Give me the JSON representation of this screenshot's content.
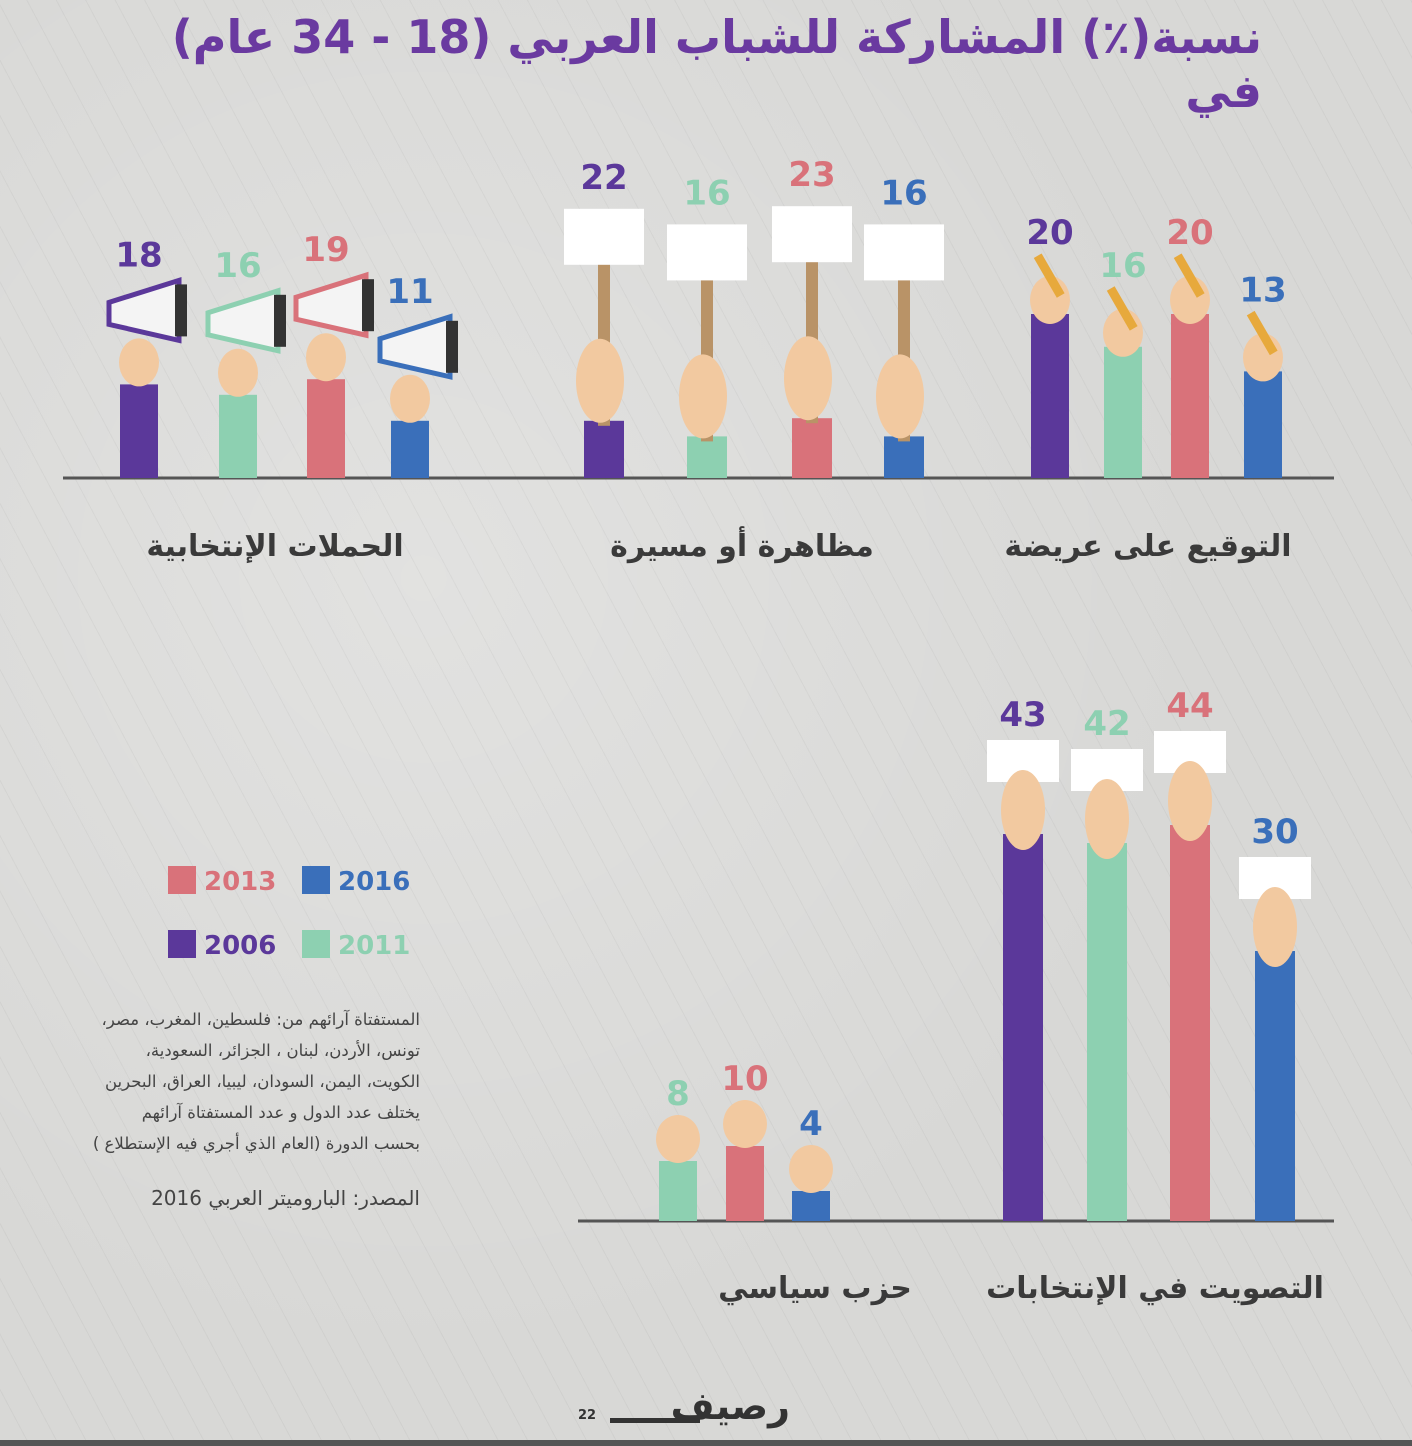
{
  "title": "نسبة(٪) المشاركة للشباب العربي (18 - 34 عام) في",
  "colors": {
    "2006": "#5b389a",
    "2011": "#8dd0b1",
    "2013": "#d9727a",
    "2016": "#3a6fba",
    "axis": "#555555",
    "skin": "#f2c9a0",
    "sign": "#ffffff",
    "pole": "#b99367"
  },
  "legend": [
    {
      "name": "2013",
      "color": "#d9727a"
    },
    {
      "name": "2016",
      "color": "#3a6fba"
    },
    {
      "name": "2006",
      "color": "#5b389a"
    },
    {
      "name": "2011",
      "color": "#8dd0b1"
    }
  ],
  "chart_data": {
    "type": "bar",
    "series_names": [
      "2006",
      "2011",
      "2013",
      "2016"
    ],
    "groups": [
      {
        "label": "التوقيع على عريضة",
        "icon": "pencil-hand-icon",
        "values": [
          20,
          16,
          20,
          13
        ]
      },
      {
        "label": "مظاهرة أو مسيرة",
        "icon": "protest-sign-icon",
        "values": [
          22,
          16,
          23,
          16
        ]
      },
      {
        "label": "الحملات الإنتخابية",
        "icon": "megaphone-icon",
        "values": [
          18,
          16,
          19,
          11
        ]
      },
      {
        "label": "التصويت في الإنتخابات",
        "icon": "ballot-hand-icon",
        "values": [
          43,
          42,
          44,
          30
        ]
      },
      {
        "label": "حزب سياسي",
        "icon": "fist-icon",
        "values": [
          null,
          8,
          10,
          4
        ]
      }
    ]
  },
  "note_lines": [
    "المستفتاة آرائهم من: فلسطين، المغرب، مصر،",
    "تونس، الأردن، لبنان ، الجزائر، السعودية،",
    "الكويت، اليمن، السودان، ليبيا، العراق، البحرين",
    "يختلف عدد الدول و عدد المستفتاة آرائهم",
    "بحسب الدورة (العام الذي أجري فيه الإستطلاع )"
  ],
  "source": "المصدر: البارومیتر العربي 2016",
  "logo": {
    "text": "رصيف",
    "page_number": "22"
  }
}
